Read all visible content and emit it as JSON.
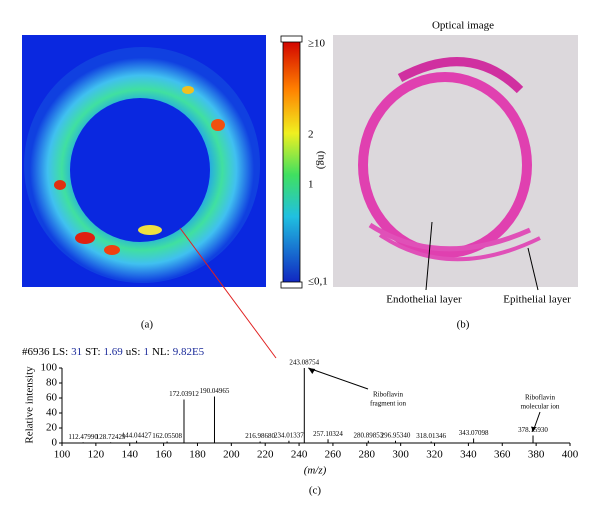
{
  "panel_a": {
    "label": "(a)",
    "colorbar": {
      "unit": "(ng)",
      "labels": [
        "≥10",
        "2",
        "1",
        "≤0,1"
      ]
    }
  },
  "panel_b": {
    "label": "(b)",
    "title": "Optical image",
    "annotations": [
      "Endothelial layer",
      "Epithelial layer"
    ]
  },
  "chart_data": {
    "type": "stem",
    "panel_label": "(c)",
    "header": [
      "#6936 LS:",
      "31",
      "ST:",
      "1.69",
      "uS:",
      "1",
      "NL:",
      "9.82E5"
    ],
    "xlabel": "(m/z)",
    "ylabel": "Relative intensity",
    "x": [
      112.4799,
      128.72429,
      144.04427,
      162.05508,
      172.03912,
      190.04965,
      216.9868,
      234.01337,
      243.08754,
      257.10324,
      280.89853,
      296.9534,
      318.01346,
      343.07098,
      378.1593
    ],
    "x_labels": [
      "112.47990",
      "128.72429",
      "144.04427",
      "162.05508",
      "172.03912",
      "190.04965",
      "216.98680",
      "234.01337",
      "243.08754",
      "257.10324",
      "280.89853",
      "296.95340",
      "318.01346",
      "343.07098",
      "378.15930"
    ],
    "values": [
      1,
      1,
      3,
      2,
      58,
      62,
      2,
      3,
      100,
      5,
      3,
      3,
      2,
      6,
      10
    ],
    "color": "#000000",
    "annotations": [
      {
        "lines": [
          "Riboflavin",
          "fragment ion"
        ],
        "peak": 8
      },
      {
        "lines": [
          "Riboflavin",
          "molecular ion"
        ],
        "peak": 14
      }
    ],
    "xlim": [
      100,
      400
    ],
    "xticks": [
      100,
      120,
      140,
      160,
      180,
      200,
      220,
      240,
      260,
      280,
      300,
      320,
      340,
      360,
      380,
      400
    ],
    "ylim": [
      0,
      100
    ],
    "yticks": [
      0,
      20,
      40,
      60,
      80,
      100
    ]
  }
}
